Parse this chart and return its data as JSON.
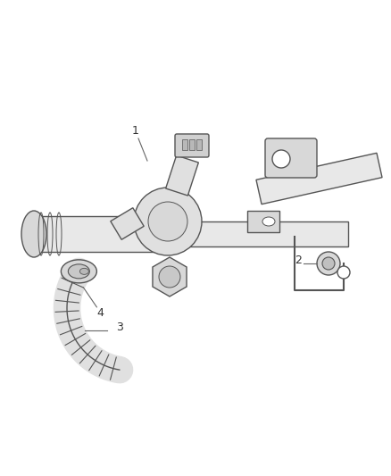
{
  "bg_color": "#ffffff",
  "line_color": "#555555",
  "fill_color": "#e8e8e8",
  "dark_fill": "#d0d0d0",
  "figsize": [
    4.38,
    5.33
  ],
  "dpi": 100,
  "label_color": "#333333",
  "label_fontsize": 9,
  "lw": 1.0
}
